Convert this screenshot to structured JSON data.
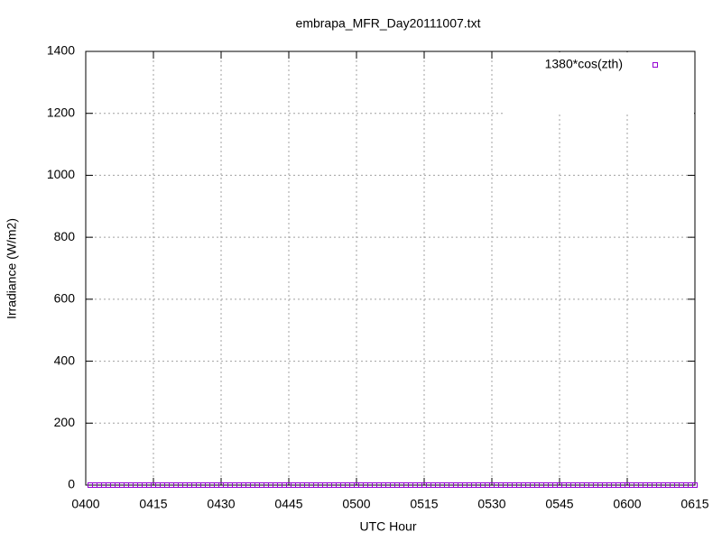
{
  "chart_data": {
    "type": "scatter",
    "title": "embrapa_MFR_Day20111007.txt",
    "x_label": "UTC Hour",
    "y_label": "Irradiance (W/m2)",
    "xlim": [
      240,
      375
    ],
    "ylim": [
      0,
      1400
    ],
    "xticks": [
      {
        "value": 240,
        "label": "0400"
      },
      {
        "value": 255,
        "label": "0415"
      },
      {
        "value": 270,
        "label": "0430"
      },
      {
        "value": 285,
        "label": "0445"
      },
      {
        "value": 300,
        "label": "0500"
      },
      {
        "value": 315,
        "label": "0515"
      },
      {
        "value": 330,
        "label": "0530"
      },
      {
        "value": 345,
        "label": "0545"
      },
      {
        "value": 360,
        "label": "0600"
      },
      {
        "value": 375,
        "label": "0615"
      }
    ],
    "yticks": [
      0,
      200,
      400,
      600,
      800,
      1000,
      1200,
      1400
    ],
    "grid": true,
    "legend": "top-right",
    "series": [
      {
        "name": "1380*cos(zth)",
        "color": "#9400d3",
        "x": [
          241,
          242,
          243,
          244,
          245,
          246,
          247,
          248,
          249,
          250,
          251,
          252,
          253,
          254,
          255,
          256,
          257,
          258,
          259,
          260,
          261,
          262,
          263,
          264,
          265,
          266,
          267,
          268,
          269,
          270,
          271,
          272,
          273,
          274,
          275,
          276,
          277,
          278,
          279,
          280,
          281,
          282,
          283,
          284,
          285,
          286,
          287,
          288,
          289,
          290,
          291,
          292,
          293,
          294,
          295,
          296,
          297,
          298,
          299,
          300,
          301,
          302,
          303,
          304,
          305,
          306,
          307,
          308,
          309,
          310,
          311,
          312,
          313,
          314,
          315,
          316,
          317,
          318,
          319,
          320,
          321,
          322,
          323,
          324,
          325,
          326,
          327,
          328,
          329,
          330,
          331,
          332,
          333,
          334,
          335,
          336,
          337,
          338,
          339,
          340,
          341,
          342,
          343,
          344,
          345,
          346,
          347,
          348,
          349,
          350,
          351,
          352,
          353,
          354,
          355,
          356,
          357,
          358,
          359,
          360,
          361,
          362,
          363,
          364,
          365,
          366,
          367,
          368,
          369,
          370,
          371,
          372,
          373,
          374,
          375
        ],
        "values": [
          0,
          0,
          0,
          0,
          0,
          0,
          0,
          0,
          0,
          0,
          0,
          0,
          0,
          0,
          0,
          0,
          0,
          0,
          0,
          0,
          0,
          0,
          0,
          0,
          0,
          0,
          0,
          0,
          0,
          0,
          0,
          0,
          0,
          0,
          0,
          0,
          0,
          0,
          0,
          0,
          0,
          0,
          0,
          0,
          0,
          0,
          0,
          0,
          0,
          0,
          0,
          0,
          0,
          0,
          0,
          0,
          0,
          0,
          0,
          0,
          0,
          0,
          0,
          0,
          0,
          0,
          0,
          0,
          0,
          0,
          0,
          0,
          0,
          0,
          0,
          0,
          0,
          0,
          0,
          0,
          0,
          0,
          0,
          0,
          0,
          0,
          0,
          0,
          0,
          0,
          0,
          0,
          0,
          0,
          0,
          0,
          0,
          0,
          0,
          0,
          0,
          0,
          0,
          0,
          0,
          0,
          0,
          0,
          0,
          0,
          0,
          0,
          0,
          0,
          0,
          0,
          0,
          0,
          0,
          0,
          0,
          0,
          0,
          0,
          0,
          0,
          0,
          0,
          0,
          0,
          0,
          0,
          0,
          0,
          0
        ]
      }
    ]
  }
}
